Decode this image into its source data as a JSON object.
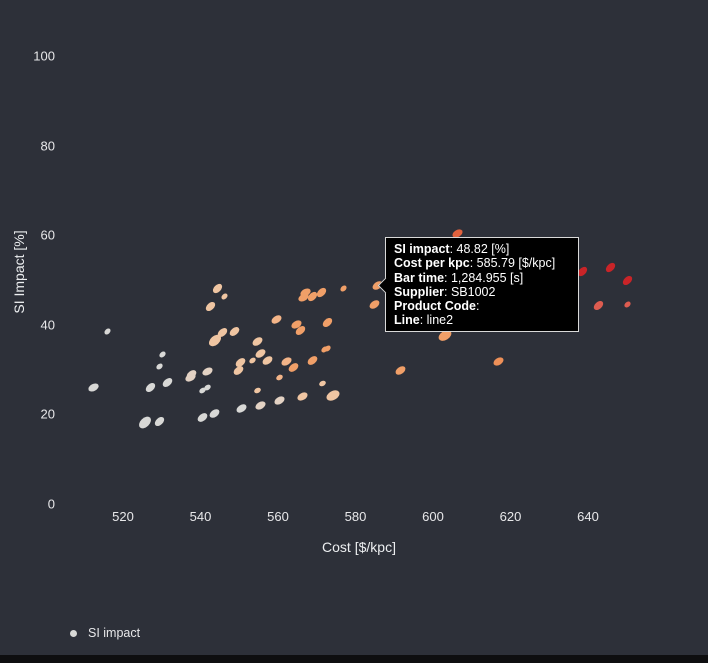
{
  "chart_data": {
    "type": "scatter",
    "title": "",
    "xlabel": "Cost [$/kpc]",
    "ylabel": "SI Impact [%]",
    "x_ticks": [
      520,
      540,
      560,
      580,
      600,
      620,
      640
    ],
    "y_ticks": [
      0,
      20,
      40,
      60,
      80,
      100
    ],
    "xlim": [
      504,
      658
    ],
    "ylim": [
      0,
      110
    ],
    "grid": false,
    "legend": {
      "position": "bottom-left",
      "entries": [
        {
          "label": "SI impact",
          "marker_color": "#d8d8d6"
        }
      ]
    },
    "palette": [
      "#d8d8d6",
      "#e3d2c4",
      "#efc5a2",
      "#f3b488",
      "#f09f68",
      "#ee9058",
      "#e2623e",
      "#dd5c50",
      "#c92428"
    ],
    "series": [
      {
        "name": "SI impact",
        "x_field": "cost_per_kpc",
        "y_field": "si_impact_pct",
        "points": [
          [
            512.3,
            26.1,
            0,
            "m"
          ],
          [
            515.9,
            38.4,
            0,
            "s"
          ],
          [
            525.7,
            18.1,
            0,
            "l"
          ],
          [
            529.5,
            18.5,
            0,
            "m"
          ],
          [
            527.0,
            26.1,
            0,
            "m"
          ],
          [
            531.4,
            27.2,
            0,
            "m"
          ],
          [
            530.1,
            33.3,
            0,
            "s"
          ],
          [
            529.5,
            30.6,
            0,
            "s"
          ],
          [
            537.8,
            28.8,
            1,
            "m"
          ],
          [
            540.4,
            19.4,
            0,
            "m"
          ],
          [
            543.7,
            20.1,
            0,
            "m"
          ],
          [
            540.4,
            25.4,
            0,
            "s"
          ],
          [
            541.9,
            25.9,
            0,
            "s"
          ],
          [
            550.5,
            21.4,
            0,
            "m"
          ],
          [
            555.4,
            21.9,
            1,
            "m"
          ],
          [
            560.5,
            23.0,
            1,
            "m"
          ],
          [
            566.2,
            23.9,
            2,
            "m"
          ],
          [
            574.2,
            24.3,
            2,
            "l"
          ],
          [
            571.4,
            27.0,
            2,
            "s"
          ],
          [
            544.5,
            48.2,
            2,
            "m"
          ],
          [
            546.1,
            46.4,
            2,
            "s"
          ],
          [
            542.5,
            44.0,
            2,
            "m"
          ],
          [
            543.7,
            36.6,
            2,
            "l"
          ],
          [
            545.8,
            38.2,
            2,
            "m"
          ],
          [
            548.9,
            38.4,
            2,
            "m"
          ],
          [
            550.2,
            31.5,
            2,
            "m"
          ],
          [
            549.7,
            29.9,
            2,
            "m"
          ],
          [
            553.3,
            32.1,
            2,
            "s"
          ],
          [
            554.8,
            36.2,
            2,
            "m"
          ],
          [
            555.4,
            33.7,
            2,
            "m"
          ],
          [
            557.2,
            32.1,
            2,
            "m"
          ],
          [
            559.7,
            41.1,
            3,
            "m"
          ],
          [
            560.5,
            28.3,
            3,
            "s"
          ],
          [
            562.3,
            31.7,
            3,
            "m"
          ],
          [
            564.9,
            40.0,
            4,
            "m"
          ],
          [
            566.5,
            46.0,
            4,
            "m"
          ],
          [
            567.2,
            47.3,
            4,
            "m"
          ],
          [
            569.0,
            46.4,
            4,
            "m"
          ],
          [
            571.1,
            47.1,
            4,
            "m"
          ],
          [
            576.8,
            48.2,
            4,
            "s"
          ],
          [
            572.9,
            40.6,
            4,
            "m"
          ],
          [
            565.7,
            38.8,
            4,
            "m"
          ],
          [
            572.1,
            34.4,
            4,
            "s"
          ],
          [
            572.9,
            34.8,
            4,
            "s"
          ],
          [
            568.8,
            32.1,
            4,
            "m"
          ],
          [
            563.9,
            30.4,
            4,
            "m"
          ],
          [
            585.79,
            48.82,
            4,
            "m"
          ],
          [
            585.0,
            44.6,
            4,
            "m"
          ],
          [
            591.5,
            29.9,
            4,
            "m"
          ],
          [
            603.1,
            37.7,
            4,
            "l"
          ],
          [
            616.8,
            31.9,
            5,
            "m"
          ],
          [
            606.2,
            60.3,
            6,
            "m"
          ],
          [
            537.3,
            28.3,
            1,
            "m"
          ],
          [
            541.9,
            29.5,
            1,
            "m"
          ],
          [
            554.6,
            25.4,
            2,
            "s"
          ],
          [
            638.7,
            51.8,
            8,
            "m"
          ],
          [
            645.7,
            52.9,
            8,
            "m"
          ],
          [
            650.1,
            49.8,
            8,
            "m"
          ],
          [
            642.6,
            44.4,
            7,
            "m"
          ],
          [
            650.1,
            44.6,
            7,
            "s"
          ]
        ]
      }
    ],
    "hovered_point": {
      "si_impact_pct": 48.82,
      "cost_per_kpc": 585.79
    }
  },
  "tooltip": {
    "rows": [
      {
        "label": "SI impact",
        "value": "48.82 [%]"
      },
      {
        "label": "Cost per kpc",
        "value": "585.79 [$/kpc]"
      },
      {
        "label": "Bar time",
        "value": "1,284.955 [s]"
      },
      {
        "label": "Supplier",
        "value": "SB1002"
      },
      {
        "label": "Product Code",
        "value": ""
      },
      {
        "label": "Line",
        "value": "line2"
      }
    ]
  },
  "legend": {
    "label": "SI impact",
    "marker_color": "#d8d8d6"
  },
  "colors": {
    "background": "#2d3039",
    "axis_text": "#e8e8ea",
    "tooltip_bg": "#000000",
    "tooltip_border": "#d9d9d9",
    "bottom_bar": "#0e0e10"
  }
}
